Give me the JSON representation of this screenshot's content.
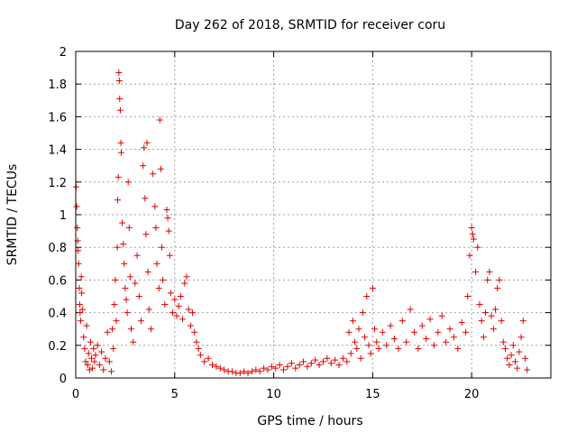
{
  "chart_data": {
    "type": "scatter",
    "title": "Day 262 of 2018, SRMTID for receiver coru",
    "xlabel": "GPS time / hours",
    "ylabel": "SRMTID / TECUs",
    "xlim": [
      0,
      24
    ],
    "ylim": [
      0,
      2
    ],
    "xticks": [
      0,
      5,
      10,
      15,
      20
    ],
    "xtick_labels": [
      "0",
      "5",
      "10",
      "15",
      "20"
    ],
    "yticks": [
      0,
      0.2,
      0.4,
      0.6,
      0.8,
      1,
      1.2,
      1.4,
      1.6,
      1.8,
      2
    ],
    "ytick_labels": [
      "0",
      "0.2",
      "0.4",
      "0.6",
      "0.8",
      "1",
      "1.2",
      "1.4",
      "1.6",
      "1.8",
      "2"
    ],
    "grid": true,
    "marker": "+",
    "color": "#e00000",
    "series": [
      {
        "name": "SRMTID",
        "points": [
          [
            0.02,
            1.17
          ],
          [
            0.05,
            1.05
          ],
          [
            0.08,
            0.92
          ],
          [
            0.1,
            0.84
          ],
          [
            0.12,
            0.78
          ],
          [
            0.15,
            0.7
          ],
          [
            0.18,
            0.55
          ],
          [
            0.2,
            0.45
          ],
          [
            0.22,
            0.4
          ],
          [
            0.25,
            0.35
          ],
          [
            0.28,
            0.62
          ],
          [
            0.3,
            0.52
          ],
          [
            0.35,
            0.42
          ],
          [
            0.4,
            0.25
          ],
          [
            0.45,
            0.18
          ],
          [
            0.5,
            0.1
          ],
          [
            0.55,
            0.32
          ],
          [
            0.6,
            0.08
          ],
          [
            0.65,
            0.15
          ],
          [
            0.7,
            0.05
          ],
          [
            0.75,
            0.22
          ],
          [
            0.8,
            0.12
          ],
          [
            0.85,
            0.06
          ],
          [
            0.9,
            0.18
          ],
          [
            0.95,
            0.1
          ],
          [
            1.0,
            0.14
          ],
          [
            1.1,
            0.2
          ],
          [
            1.2,
            0.08
          ],
          [
            1.3,
            0.16
          ],
          [
            1.4,
            0.05
          ],
          [
            1.5,
            0.12
          ],
          [
            1.6,
            0.28
          ],
          [
            1.7,
            0.1
          ],
          [
            1.8,
            0.04
          ],
          [
            1.85,
            0.3
          ],
          [
            1.9,
            0.18
          ],
          [
            1.95,
            0.45
          ],
          [
            2.0,
            0.6
          ],
          [
            2.05,
            0.35
          ],
          [
            2.1,
            0.8
          ],
          [
            2.12,
            1.09
          ],
          [
            2.15,
            1.23
          ],
          [
            2.18,
            1.87
          ],
          [
            2.2,
            1.82
          ],
          [
            2.22,
            1.71
          ],
          [
            2.25,
            1.64
          ],
          [
            2.28,
            1.44
          ],
          [
            2.3,
            1.38
          ],
          [
            2.35,
            0.95
          ],
          [
            2.4,
            0.82
          ],
          [
            2.45,
            0.7
          ],
          [
            2.5,
            0.55
          ],
          [
            2.55,
            0.48
          ],
          [
            2.6,
            0.4
          ],
          [
            2.65,
            1.2
          ],
          [
            2.7,
            0.92
          ],
          [
            2.75,
            0.62
          ],
          [
            2.8,
            0.3
          ],
          [
            2.9,
            0.22
          ],
          [
            3.0,
            0.58
          ],
          [
            3.1,
            0.75
          ],
          [
            3.2,
            0.5
          ],
          [
            3.3,
            0.35
          ],
          [
            3.4,
            1.3
          ],
          [
            3.45,
            1.41
          ],
          [
            3.5,
            1.1
          ],
          [
            3.55,
            0.88
          ],
          [
            3.6,
            1.44
          ],
          [
            3.65,
            0.65
          ],
          [
            3.7,
            0.42
          ],
          [
            3.8,
            0.3
          ],
          [
            3.9,
            1.25
          ],
          [
            4.0,
            1.05
          ],
          [
            4.05,
            0.92
          ],
          [
            4.1,
            0.7
          ],
          [
            4.2,
            0.55
          ],
          [
            4.25,
            1.58
          ],
          [
            4.3,
            1.28
          ],
          [
            4.35,
            0.8
          ],
          [
            4.4,
            0.6
          ],
          [
            4.5,
            0.45
          ],
          [
            4.6,
            1.03
          ],
          [
            4.65,
            0.98
          ],
          [
            4.7,
            0.9
          ],
          [
            4.75,
            0.75
          ],
          [
            4.8,
            0.52
          ],
          [
            4.9,
            0.4
          ],
          [
            5.0,
            0.48
          ],
          [
            5.1,
            0.38
          ],
          [
            5.2,
            0.44
          ],
          [
            5.3,
            0.5
          ],
          [
            5.4,
            0.36
          ],
          [
            5.5,
            0.58
          ],
          [
            5.6,
            0.62
          ],
          [
            5.7,
            0.42
          ],
          [
            5.8,
            0.32
          ],
          [
            5.9,
            0.4
          ],
          [
            6.0,
            0.28
          ],
          [
            6.1,
            0.22
          ],
          [
            6.2,
            0.18
          ],
          [
            6.3,
            0.14
          ],
          [
            6.5,
            0.1
          ],
          [
            6.7,
            0.12
          ],
          [
            6.9,
            0.08
          ],
          [
            7.1,
            0.07
          ],
          [
            7.3,
            0.06
          ],
          [
            7.5,
            0.05
          ],
          [
            7.7,
            0.04
          ],
          [
            7.9,
            0.04
          ],
          [
            8.1,
            0.03
          ],
          [
            8.3,
            0.03
          ],
          [
            8.5,
            0.04
          ],
          [
            8.7,
            0.03
          ],
          [
            8.9,
            0.04
          ],
          [
            9.1,
            0.05
          ],
          [
            9.3,
            0.04
          ],
          [
            9.5,
            0.06
          ],
          [
            9.7,
            0.05
          ],
          [
            9.9,
            0.07
          ],
          [
            10.1,
            0.06
          ],
          [
            10.3,
            0.08
          ],
          [
            10.5,
            0.05
          ],
          [
            10.7,
            0.07
          ],
          [
            10.9,
            0.09
          ],
          [
            11.1,
            0.06
          ],
          [
            11.3,
            0.08
          ],
          [
            11.5,
            0.1
          ],
          [
            11.7,
            0.07
          ],
          [
            11.9,
            0.09
          ],
          [
            12.1,
            0.11
          ],
          [
            12.3,
            0.08
          ],
          [
            12.5,
            0.1
          ],
          [
            12.7,
            0.12
          ],
          [
            12.9,
            0.09
          ],
          [
            13.1,
            0.11
          ],
          [
            13.3,
            0.08
          ],
          [
            13.5,
            0.12
          ],
          [
            13.7,
            0.1
          ],
          [
            13.8,
            0.28
          ],
          [
            13.9,
            0.15
          ],
          [
            14.0,
            0.35
          ],
          [
            14.1,
            0.22
          ],
          [
            14.2,
            0.18
          ],
          [
            14.3,
            0.3
          ],
          [
            14.4,
            0.12
          ],
          [
            14.5,
            0.4
          ],
          [
            14.6,
            0.25
          ],
          [
            14.7,
            0.5
          ],
          [
            14.8,
            0.2
          ],
          [
            14.9,
            0.15
          ],
          [
            15.0,
            0.55
          ],
          [
            15.1,
            0.3
          ],
          [
            15.2,
            0.22
          ],
          [
            15.3,
            0.18
          ],
          [
            15.5,
            0.28
          ],
          [
            15.7,
            0.2
          ],
          [
            15.9,
            0.32
          ],
          [
            16.1,
            0.24
          ],
          [
            16.3,
            0.18
          ],
          [
            16.5,
            0.35
          ],
          [
            16.7,
            0.22
          ],
          [
            16.9,
            0.42
          ],
          [
            17.1,
            0.28
          ],
          [
            17.3,
            0.18
          ],
          [
            17.5,
            0.32
          ],
          [
            17.7,
            0.24
          ],
          [
            17.9,
            0.36
          ],
          [
            18.1,
            0.2
          ],
          [
            18.3,
            0.28
          ],
          [
            18.5,
            0.38
          ],
          [
            18.7,
            0.22
          ],
          [
            18.9,
            0.3
          ],
          [
            19.1,
            0.25
          ],
          [
            19.3,
            0.18
          ],
          [
            19.5,
            0.34
          ],
          [
            19.7,
            0.28
          ],
          [
            19.8,
            0.5
          ],
          [
            19.9,
            0.75
          ],
          [
            20.0,
            0.92
          ],
          [
            20.05,
            0.88
          ],
          [
            20.1,
            0.85
          ],
          [
            20.2,
            0.65
          ],
          [
            20.3,
            0.8
          ],
          [
            20.4,
            0.45
          ],
          [
            20.5,
            0.35
          ],
          [
            20.6,
            0.25
          ],
          [
            20.7,
            0.4
          ],
          [
            20.8,
            0.6
          ],
          [
            20.9,
            0.65
          ],
          [
            21.0,
            0.38
          ],
          [
            21.1,
            0.3
          ],
          [
            21.2,
            0.42
          ],
          [
            21.3,
            0.55
          ],
          [
            21.4,
            0.6
          ],
          [
            21.5,
            0.35
          ],
          [
            21.6,
            0.22
          ],
          [
            21.7,
            0.18
          ],
          [
            21.8,
            0.12
          ],
          [
            21.9,
            0.08
          ],
          [
            22.0,
            0.14
          ],
          [
            22.1,
            0.2
          ],
          [
            22.2,
            0.1
          ],
          [
            22.3,
            0.06
          ],
          [
            22.4,
            0.16
          ],
          [
            22.5,
            0.25
          ],
          [
            22.6,
            0.35
          ],
          [
            22.7,
            0.12
          ],
          [
            22.8,
            0.05
          ]
        ]
      }
    ]
  }
}
